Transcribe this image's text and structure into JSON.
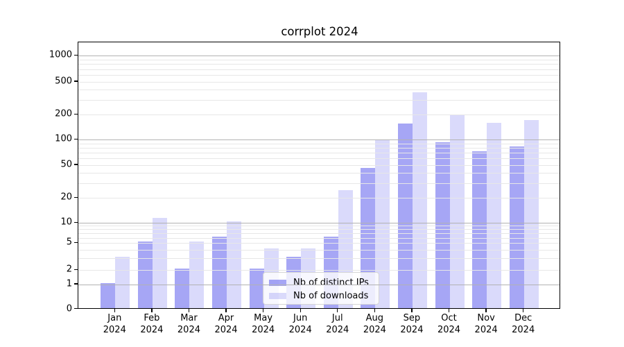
{
  "chart_data": {
    "type": "bar",
    "title": "corrplot 2024",
    "x_labels": [
      {
        "month": "Jan",
        "year": "2024"
      },
      {
        "month": "Feb",
        "year": "2024"
      },
      {
        "month": "Mar",
        "year": "2024"
      },
      {
        "month": "Apr",
        "year": "2024"
      },
      {
        "month": "May",
        "year": "2024"
      },
      {
        "month": "Jun",
        "year": "2024"
      },
      {
        "month": "Jul",
        "year": "2024"
      },
      {
        "month": "Aug",
        "year": "2024"
      },
      {
        "month": "Sep",
        "year": "2024"
      },
      {
        "month": "Oct",
        "year": "2024"
      },
      {
        "month": "Nov",
        "year": "2024"
      },
      {
        "month": "Dec",
        "year": "2024"
      }
    ],
    "series": [
      {
        "name": "Nb of distinct IPs",
        "color": "rgba(70,70,235,0.48)",
        "values": [
          1,
          5,
          2,
          6,
          2,
          3,
          6,
          44,
          150,
          90,
          70,
          80
        ]
      },
      {
        "name": "Nb of downloads",
        "color": "rgba(70,70,235,0.20)",
        "values": [
          3,
          11,
          5,
          10,
          4,
          4,
          24,
          95,
          360,
          190,
          155,
          165
        ]
      }
    ],
    "y_ticks": [
      0,
      1,
      2,
      5,
      10,
      20,
      50,
      100,
      200,
      500,
      1000
    ],
    "y_scale": "symlog",
    "ylim": [
      0,
      1500
    ],
    "grid": "horizontal major+minor",
    "grid_major_color": "#b2b2b2",
    "grid_minor_color": "#e7e7e7",
    "legend_position": "lower center"
  }
}
